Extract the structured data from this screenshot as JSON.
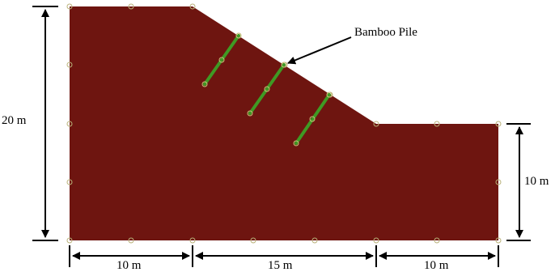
{
  "diagram": {
    "slope_color": "#6e1510",
    "pile_color": "#3f9a24",
    "node_color": "#b9b27a",
    "callout_label": "Bamboo Pile",
    "dimensions": {
      "left_height": "20 m",
      "right_height": "10 m",
      "bottom_left_width": "10 m",
      "bottom_middle_width": "15 m",
      "bottom_right_width": "10 m"
    }
  }
}
